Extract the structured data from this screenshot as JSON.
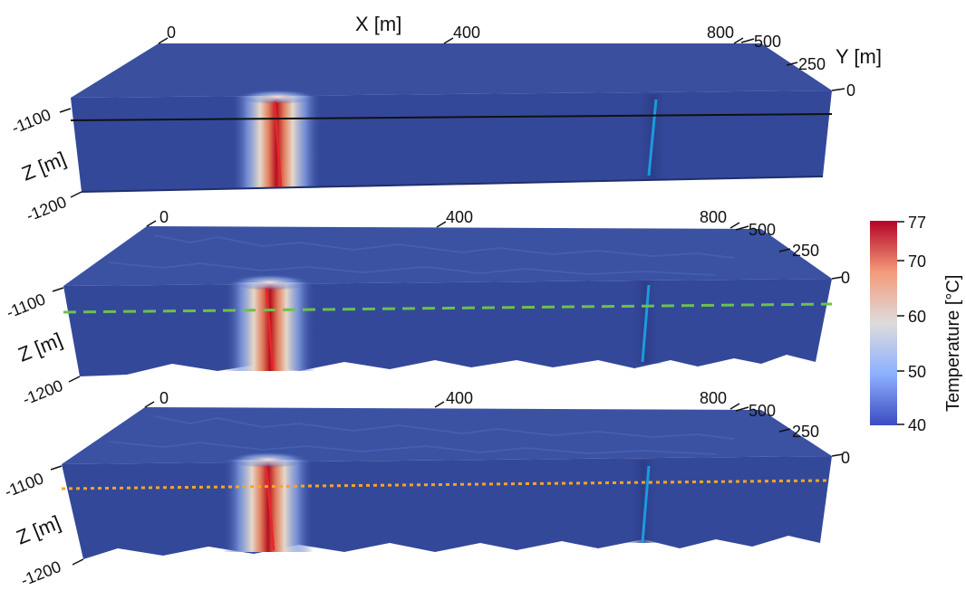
{
  "axes": {
    "x_title": "X [m]",
    "y_title": "Y [m]",
    "z_title": "Z [m]",
    "x_ticks": [
      "0",
      "400",
      "800"
    ],
    "y_ticks": [
      "500",
      "250",
      "0"
    ],
    "z_ticks": [
      "-1100",
      "-1200"
    ]
  },
  "colorbar": {
    "title": "Temperature [°C]",
    "ticks": [
      "77",
      "70",
      "60",
      "50",
      "40"
    ],
    "min": 40,
    "max": 77,
    "colors": [
      "#3b4cc0",
      "#8db0fe",
      "#dddcdc",
      "#f49a7b",
      "#b40426"
    ]
  },
  "panels": [
    {
      "id": "top",
      "surface": "flat",
      "profile_line": "solid",
      "profile_color": "#111111"
    },
    {
      "id": "middle",
      "surface": "rough",
      "profile_line": "dashed",
      "profile_color": "#6cc24a"
    },
    {
      "id": "bottom",
      "surface": "rough",
      "profile_line": "dotted",
      "profile_color": "#f5a623"
    }
  ],
  "wells": {
    "injection_color": "#e8262b",
    "production_color": "#1a9be0"
  },
  "colors": {
    "block_top": "#3a4f9e",
    "block_front": "#34489a",
    "block_bottom_edge": "#1f2f6b"
  }
}
